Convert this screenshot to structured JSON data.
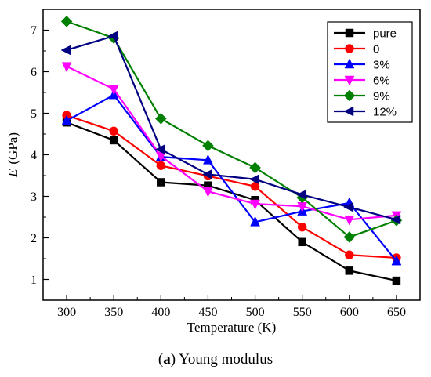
{
  "caption": {
    "letter": "a",
    "text": " Young modulus"
  },
  "chart_data": {
    "type": "line",
    "xlabel": "Temperature (K)",
    "ylabel_var": "E",
    "ylabel_unit": "(GPa)",
    "x": [
      300,
      350,
      400,
      450,
      500,
      550,
      600,
      650
    ],
    "xlim": [
      275,
      675
    ],
    "ylim": [
      0.5,
      7.5
    ],
    "xticks": [
      "300",
      "350",
      "400",
      "450",
      "500",
      "550",
      "600",
      "650"
    ],
    "yticks": [
      "1",
      "2",
      "3",
      "4",
      "5",
      "6",
      "7"
    ],
    "legend_position": "top-right",
    "grid": false,
    "series": [
      {
        "name": "pure",
        "color": "#000000",
        "marker": "square",
        "values": [
          4.78,
          4.35,
          3.34,
          3.26,
          2.91,
          1.9,
          1.21,
          0.97
        ]
      },
      {
        "name": "0",
        "color": "#ff0000",
        "marker": "circle",
        "values": [
          4.95,
          4.57,
          3.74,
          3.49,
          3.24,
          2.26,
          1.59,
          1.52
        ]
      },
      {
        "name": "3%",
        "color": "#0000ff",
        "marker": "triangle-up",
        "values": [
          4.82,
          5.44,
          3.95,
          3.87,
          2.38,
          2.64,
          2.84,
          1.44
        ]
      },
      {
        "name": "6%",
        "color": "#ff00ff",
        "marker": "triangle-down",
        "values": [
          6.13,
          5.58,
          3.97,
          3.12,
          2.82,
          2.76,
          2.44,
          2.54
        ]
      },
      {
        "name": "9%",
        "color": "#008000",
        "marker": "diamond",
        "values": [
          7.21,
          6.81,
          4.87,
          4.22,
          3.69,
          2.97,
          2.02,
          2.42
        ]
      },
      {
        "name": "12%",
        "color": "#000080",
        "marker": "triangle-left",
        "values": [
          6.52,
          6.86,
          4.13,
          3.53,
          3.41,
          3.04,
          2.74,
          2.44
        ]
      }
    ]
  }
}
